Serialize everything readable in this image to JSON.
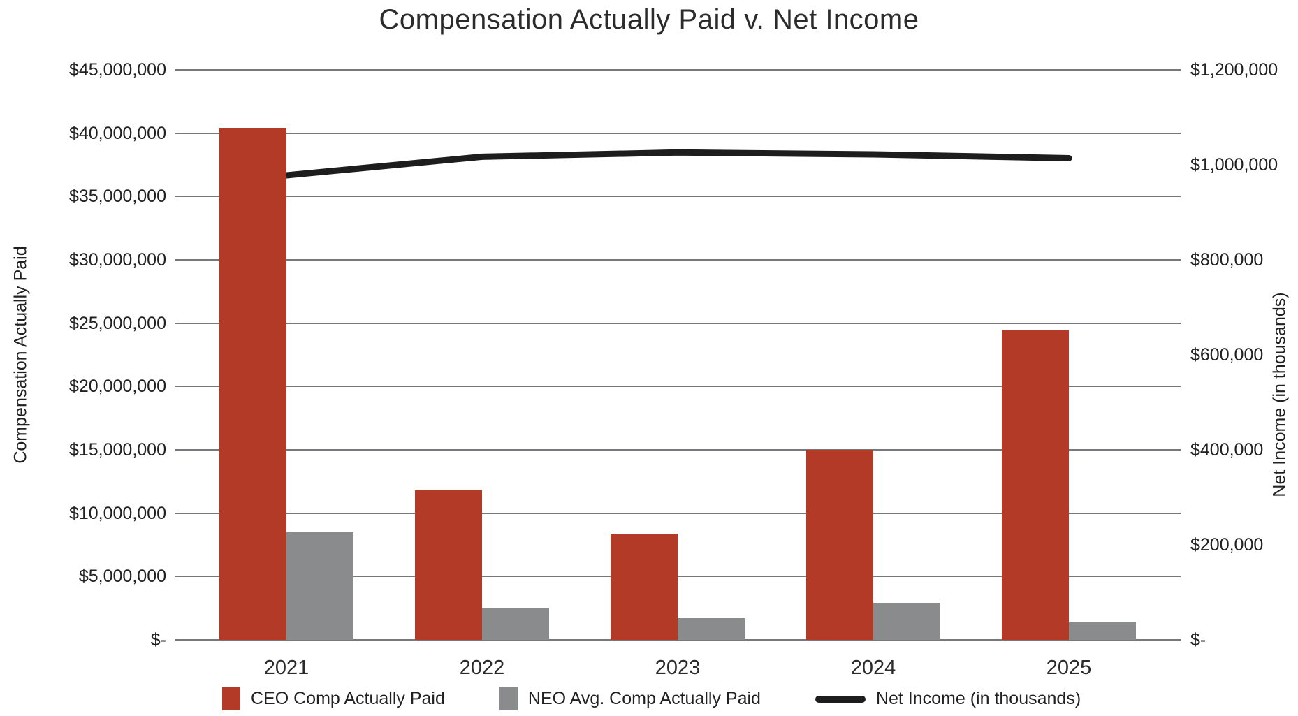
{
  "title": "Compensation Actually Paid v. Net Income",
  "axes": {
    "left_title": "Compensation Actually Paid",
    "right_title": "Net Income (in thousands)",
    "left_ticks": [
      "$45,000,000",
      "$40,000,000",
      "$35,000,000",
      "$30,000,000",
      "$25,000,000",
      "$20,000,000",
      "$15,000,000",
      "$10,000,000",
      "$5,000,000",
      "$-"
    ],
    "right_ticks": [
      "$1,200,000",
      "$1,000,000",
      "$800,000",
      "$600,000",
      "$400,000",
      "$200,000",
      "$-"
    ]
  },
  "legend": {
    "items": [
      {
        "label": "CEO Comp Actually Paid",
        "swatch": "square",
        "color": "#b23a26"
      },
      {
        "label": "NEO Avg. Comp Actually Paid",
        "swatch": "square",
        "color": "#8a8b8d"
      },
      {
        "label": "Net Income (in thousands)",
        "swatch": "line",
        "color": "#1d1d1d"
      }
    ]
  },
  "x_axis": {
    "labels": [
      "2021",
      "2022",
      "2023",
      "2024",
      "2025"
    ]
  },
  "chart_data": {
    "type": "combo",
    "categories": [
      "2021",
      "2022",
      "2023",
      "2024",
      "2025"
    ],
    "series": [
      {
        "name": "CEO Comp Actually Paid",
        "type": "bar",
        "axis": "left",
        "color": "#b23a26",
        "values": [
          40400000,
          11800000,
          8400000,
          15000000,
          24500000
        ]
      },
      {
        "name": "NEO Avg. Comp Actually Paid",
        "type": "bar",
        "axis": "left",
        "color": "#8a8b8d",
        "values": [
          8500000,
          2550000,
          1700000,
          2900000,
          1400000
        ]
      },
      {
        "name": "Net Income (in thousands)",
        "type": "line",
        "axis": "right",
        "color": "#1d1d1d",
        "values": [
          978000,
          1017000,
          1026000,
          1022000,
          1014000
        ]
      }
    ],
    "left_axis": {
      "label": "Compensation Actually Paid",
      "min": 0,
      "max": 45000000,
      "step": 5000000
    },
    "right_axis": {
      "label": "Net Income (in thousands)",
      "min": 0,
      "max": 1200000,
      "step": 200000
    },
    "gridlines": "horizontal",
    "legend_position": "bottom",
    "gridline_color": "#77787b"
  }
}
